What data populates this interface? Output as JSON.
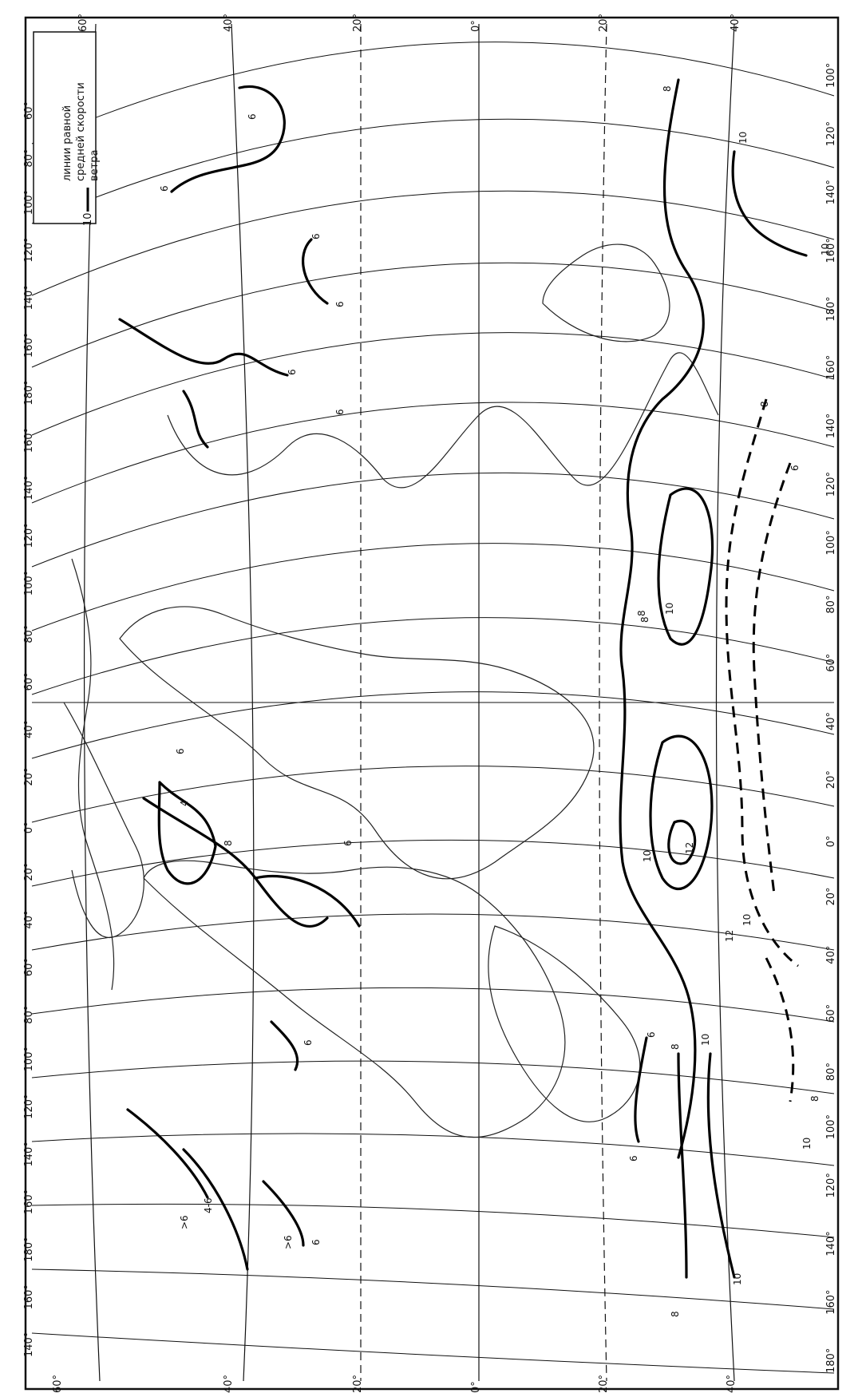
{
  "map": {
    "colors": {
      "ink": "#111111",
      "paper": "#ffffff",
      "coast": "#222222"
    },
    "legend": {
      "sample_value": "10",
      "lines": [
        "линии равной",
        "средней скорости",
        "ветра"
      ]
    },
    "latitude_labels": [
      "60°",
      "40°",
      "20°",
      "0°",
      "20°",
      "40°"
    ],
    "top_longitude_labels": [
      "60°",
      "80°",
      "100°",
      "120°",
      "140°",
      "160°",
      "180°",
      "160°",
      "140°",
      "120°",
      "100°",
      "80°",
      "60°",
      "40°",
      "20°",
      "0°",
      "20°",
      "40°",
      "60°",
      "80°",
      "100°",
      "120°",
      "140°",
      "160°",
      "180°",
      "160°",
      "140°"
    ],
    "bottom_longitude_labels": [
      "100°",
      "120°",
      "140°",
      "160°",
      "180°",
      "160°",
      "140°",
      "120°",
      "100°",
      "80°",
      "60°",
      "40°",
      "20°",
      "0°",
      "20°",
      "40°",
      "60°",
      "80°",
      "100°",
      "120°",
      "140°",
      "160°",
      "180°"
    ],
    "isoline_labels": [
      {
        "id": "iso-6-nw",
        "text": "6"
      },
      {
        "id": "iso-6-a",
        "text": "6"
      },
      {
        "id": "iso-6-b",
        "text": "6"
      },
      {
        "id": "iso-6-c",
        "text": "6"
      },
      {
        "id": "iso-6-d",
        "text": "6"
      },
      {
        "id": "iso-6-e",
        "text": "6"
      },
      {
        "id": "iso-4",
        "text": "4"
      },
      {
        "id": "iso-8-a",
        "text": "8"
      },
      {
        "id": "iso-6-f",
        "text": "6"
      },
      {
        "id": "iso-6-g",
        "text": "6"
      },
      {
        "id": "iso-6-h",
        "text": "6"
      },
      {
        "id": "iso-gt6-a",
        "text": ">6"
      },
      {
        "id": "iso-46",
        "text": "4-6"
      },
      {
        "id": "iso-gt6-b",
        "text": ">6"
      },
      {
        "id": "iso-6-i",
        "text": "6"
      },
      {
        "id": "iso-8-b",
        "text": "8"
      },
      {
        "id": "iso-8-c",
        "text": "8"
      },
      {
        "id": "iso-10-a",
        "text": "10"
      },
      {
        "id": "iso-10-b",
        "text": "10"
      },
      {
        "id": "iso-8-d",
        "text": "8"
      },
      {
        "id": "iso-6-j",
        "text": "6"
      },
      {
        "id": "iso-8-e",
        "text": "8"
      },
      {
        "id": "iso-10-c",
        "text": "10"
      },
      {
        "id": "iso-10-d",
        "text": "10"
      },
      {
        "id": "iso-12-a",
        "text": "12"
      },
      {
        "id": "iso-10-e",
        "text": "10"
      },
      {
        "id": "iso-12-b",
        "text": "12"
      },
      {
        "id": "iso-10-f",
        "text": "10"
      },
      {
        "id": "iso-6-k",
        "text": "6"
      },
      {
        "id": "iso-8-f",
        "text": "8"
      },
      {
        "id": "iso-6-l",
        "text": "6"
      },
      {
        "id": "iso-8-g",
        "text": "8"
      },
      {
        "id": "iso-10-g",
        "text": "10"
      },
      {
        "id": "iso-10-h",
        "text": "10"
      },
      {
        "id": "iso-8-h",
        "text": "8"
      }
    ]
  }
}
